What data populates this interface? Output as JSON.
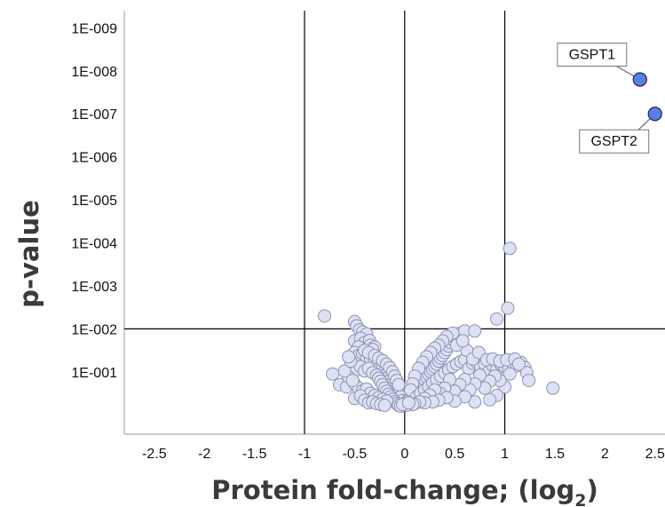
{
  "chart_data": {
    "type": "scatter",
    "xlabel": "Protein fold-change; (log",
    "xlabel_sub": "2",
    "xlabel_end": ")",
    "ylabel": "p-value",
    "xlim": [
      -2.8,
      2.6
    ],
    "ylim_log10": [
      -0.45,
      9.4
    ],
    "y_scale": "log-reversed",
    "grid": false,
    "x_ticks": [
      -2.5,
      -2,
      -1.5,
      -1,
      -0.5,
      0,
      0.5,
      1,
      1.5,
      2,
      2.5
    ],
    "x_tick_labels": [
      "-2.5",
      "-2",
      "-1.5",
      "-1",
      "-0.5",
      "0",
      "0.5",
      "1",
      "1.5",
      "2",
      "2.5"
    ],
    "y_ticks": [
      1,
      2,
      3,
      4,
      5,
      6,
      7,
      8,
      9
    ],
    "y_tick_labels": [
      "1E-001",
      "1E-002",
      "1E-003",
      "1E-004",
      "1E-005",
      "1E-006",
      "1E-007",
      "1E-008",
      "1E-009"
    ],
    "reference_lines": {
      "x": [
        -1,
        0,
        1
      ],
      "y": [
        2
      ]
    },
    "colors": {
      "background_point_fill": "#dde1f4",
      "background_point_stroke": "#8d93b3",
      "highlight_point_fill": "#5b7de8",
      "highlight_point_stroke": "#1b2550",
      "reference_line": "#000000",
      "axis_line": "#9a9a9a"
    },
    "highlighted": [
      {
        "label": "GSPT1",
        "x": 2.35,
        "y": 7.8
      },
      {
        "label": "GSPT2",
        "x": 2.5,
        "y": 7.0
      }
    ],
    "points": [
      [
        1.05,
        3.87
      ],
      [
        1.03,
        2.48
      ],
      [
        -0.8,
        2.3
      ],
      [
        0.92,
        2.23
      ],
      [
        -0.5,
        2.17
      ],
      [
        -0.48,
        2.07
      ],
      [
        -0.45,
        1.98
      ],
      [
        -0.42,
        1.93
      ],
      [
        -0.38,
        1.88
      ],
      [
        -0.5,
        1.72
      ],
      [
        -0.44,
        1.78
      ],
      [
        -0.4,
        1.68
      ],
      [
        -0.35,
        1.73
      ],
      [
        -0.34,
        1.62
      ],
      [
        -0.3,
        1.58
      ],
      [
        -0.32,
        1.52
      ],
      [
        -0.46,
        1.58
      ],
      [
        -0.5,
        1.45
      ],
      [
        -0.46,
        1.38
      ],
      [
        -0.42,
        1.42
      ],
      [
        -0.38,
        1.35
      ],
      [
        -0.34,
        1.3
      ],
      [
        -0.3,
        1.25
      ],
      [
        -0.27,
        1.2
      ],
      [
        -0.24,
        1.15
      ],
      [
        -0.22,
        1.08
      ],
      [
        -0.2,
        1.0
      ],
      [
        -0.18,
        0.94
      ],
      [
        -0.16,
        0.88
      ],
      [
        -0.14,
        0.82
      ],
      [
        -0.12,
        0.74
      ],
      [
        -0.1,
        0.66
      ],
      [
        -0.08,
        0.58
      ],
      [
        -0.06,
        0.5
      ],
      [
        -0.04,
        0.42
      ],
      [
        -0.02,
        0.33
      ],
      [
        0.0,
        0.25
      ],
      [
        0.02,
        0.3
      ],
      [
        0.04,
        0.35
      ],
      [
        -0.52,
        1.1
      ],
      [
        -0.48,
        1.05
      ],
      [
        -0.44,
        1.12
      ],
      [
        -0.4,
        1.02
      ],
      [
        -0.36,
        1.08
      ],
      [
        -0.32,
        0.98
      ],
      [
        -0.28,
        0.92
      ],
      [
        -0.26,
        0.85
      ],
      [
        -0.24,
        0.78
      ],
      [
        -0.22,
        0.7
      ],
      [
        -0.2,
        0.62
      ],
      [
        -0.18,
        0.55
      ],
      [
        -0.16,
        0.48
      ],
      [
        -0.14,
        0.42
      ],
      [
        -0.12,
        0.36
      ],
      [
        -0.1,
        0.3
      ],
      [
        -0.08,
        0.26
      ],
      [
        -0.06,
        0.22
      ],
      [
        -0.04,
        0.2
      ],
      [
        -0.72,
        0.95
      ],
      [
        -0.65,
        0.7
      ],
      [
        -0.58,
        0.65
      ],
      [
        -0.5,
        0.72
      ],
      [
        -0.46,
        0.62
      ],
      [
        -0.42,
        0.56
      ],
      [
        -0.38,
        0.6
      ],
      [
        -0.34,
        0.5
      ],
      [
        -0.3,
        0.45
      ],
      [
        -0.26,
        0.4
      ],
      [
        -0.22,
        0.36
      ],
      [
        -0.18,
        0.32
      ],
      [
        -0.5,
        0.38
      ],
      [
        -0.44,
        0.44
      ],
      [
        -0.4,
        0.34
      ],
      [
        -0.36,
        0.28
      ],
      [
        -0.32,
        0.3
      ],
      [
        -0.28,
        0.26
      ],
      [
        -0.24,
        0.24
      ],
      [
        -0.2,
        0.22
      ],
      [
        -0.56,
        0.88
      ],
      [
        -0.52,
        0.8
      ],
      [
        -0.6,
        1.02
      ],
      [
        -0.54,
        1.25
      ],
      [
        -0.56,
        1.35
      ],
      [
        -0.4,
        1.5
      ],
      [
        -0.36,
        1.45
      ],
      [
        -0.3,
        1.38
      ],
      [
        -0.26,
        1.32
      ],
      [
        -0.22,
        1.26
      ],
      [
        -0.18,
        1.18
      ],
      [
        -0.15,
        1.1
      ],
      [
        -0.12,
        1.0
      ],
      [
        -0.1,
        0.9
      ],
      [
        -0.08,
        0.8
      ],
      [
        -0.06,
        0.7
      ],
      [
        0.06,
        0.4
      ],
      [
        0.08,
        0.46
      ],
      [
        0.1,
        0.52
      ],
      [
        0.12,
        0.58
      ],
      [
        0.14,
        0.64
      ],
      [
        0.16,
        0.7
      ],
      [
        0.18,
        0.76
      ],
      [
        0.2,
        0.82
      ],
      [
        0.22,
        0.88
      ],
      [
        0.24,
        0.94
      ],
      [
        0.26,
        1.0
      ],
      [
        0.28,
        1.06
      ],
      [
        0.3,
        1.12
      ],
      [
        0.32,
        1.18
      ],
      [
        0.34,
        1.25
      ],
      [
        0.36,
        1.32
      ],
      [
        0.38,
        1.38
      ],
      [
        0.4,
        1.45
      ],
      [
        0.42,
        1.52
      ],
      [
        0.44,
        1.6
      ],
      [
        0.46,
        1.68
      ],
      [
        0.48,
        1.75
      ],
      [
        0.5,
        1.82
      ],
      [
        0.55,
        1.9
      ],
      [
        0.6,
        1.95
      ],
      [
        0.7,
        1.95
      ],
      [
        0.48,
        1.9
      ],
      [
        0.42,
        1.82
      ],
      [
        0.38,
        1.72
      ],
      [
        0.34,
        1.62
      ],
      [
        0.3,
        1.55
      ],
      [
        0.26,
        1.45
      ],
      [
        0.22,
        1.35
      ],
      [
        0.18,
        1.22
      ],
      [
        0.14,
        1.08
      ],
      [
        0.1,
        0.9
      ],
      [
        0.08,
        0.72
      ],
      [
        0.06,
        0.58
      ],
      [
        0.12,
        0.42
      ],
      [
        0.16,
        0.5
      ],
      [
        0.2,
        0.58
      ],
      [
        0.24,
        0.66
      ],
      [
        0.28,
        0.74
      ],
      [
        0.32,
        0.82
      ],
      [
        0.36,
        0.9
      ],
      [
        0.4,
        0.98
      ],
      [
        0.44,
        1.05
      ],
      [
        0.48,
        1.12
      ],
      [
        0.52,
        1.18
      ],
      [
        0.56,
        1.24
      ],
      [
        0.6,
        1.28
      ],
      [
        0.64,
        1.08
      ],
      [
        0.68,
        1.2
      ],
      [
        0.72,
        1.22
      ],
      [
        0.76,
        1.1
      ],
      [
        0.8,
        1.18
      ],
      [
        0.84,
        1.0
      ],
      [
        0.88,
        1.15
      ],
      [
        0.92,
        1.05
      ],
      [
        0.96,
        1.18
      ],
      [
        1.0,
        1.12
      ],
      [
        1.04,
        1.08
      ],
      [
        1.08,
        1.2
      ],
      [
        1.12,
        1.14
      ],
      [
        1.16,
        1.22
      ],
      [
        1.2,
        1.1
      ],
      [
        1.22,
        0.98
      ],
      [
        1.24,
        0.8
      ],
      [
        1.05,
        0.95
      ],
      [
        1.0,
        0.65
      ],
      [
        0.95,
        0.8
      ],
      [
        0.9,
        0.9
      ],
      [
        0.85,
        0.78
      ],
      [
        0.8,
        0.62
      ],
      [
        0.75,
        0.92
      ],
      [
        0.7,
        0.72
      ],
      [
        0.65,
        0.58
      ],
      [
        0.6,
        0.82
      ],
      [
        0.55,
        0.7
      ],
      [
        0.5,
        0.55
      ],
      [
        0.45,
        0.82
      ],
      [
        0.4,
        0.62
      ],
      [
        0.35,
        0.5
      ],
      [
        0.3,
        0.58
      ],
      [
        0.25,
        0.46
      ],
      [
        0.2,
        0.38
      ],
      [
        0.92,
        0.45
      ],
      [
        0.85,
        0.35
      ],
      [
        0.7,
        0.3
      ],
      [
        0.6,
        0.42
      ],
      [
        0.5,
        0.32
      ],
      [
        0.42,
        0.4
      ],
      [
        0.34,
        0.34
      ],
      [
        0.28,
        0.3
      ],
      [
        0.2,
        0.28
      ],
      [
        0.15,
        0.3
      ],
      [
        0.1,
        0.26
      ],
      [
        0.08,
        0.24
      ],
      [
        0.62,
        1.5
      ],
      [
        0.68,
        1.3
      ],
      [
        0.74,
        1.45
      ],
      [
        0.52,
        1.62
      ],
      [
        0.58,
        1.72
      ],
      [
        0.82,
        1.28
      ],
      [
        0.88,
        1.3
      ],
      [
        0.95,
        1.25
      ],
      [
        1.02,
        1.28
      ],
      [
        1.1,
        1.3
      ],
      [
        1.14,
        1.18
      ],
      [
        1.48,
        0.62
      ],
      [
        0.02,
        0.22
      ],
      [
        -0.02,
        0.24
      ],
      [
        0.04,
        0.28
      ]
    ]
  }
}
